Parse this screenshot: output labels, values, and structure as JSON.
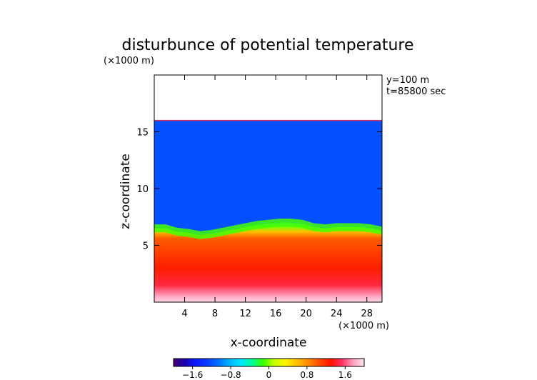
{
  "chart_data": {
    "type": "heatmap",
    "title": "disturbunce of potential temperature",
    "unit_note_top": "(×1000 m)",
    "unit_note_x": "(×1000 m)",
    "xlabel": "x-coordinate",
    "ylabel": "z-coordinate",
    "annotations": [
      "y=100 m",
      "t=85800 sec"
    ],
    "xlim": [
      0,
      30
    ],
    "ylim": [
      0,
      20
    ],
    "xticks": [
      4,
      8,
      12,
      16,
      20,
      24,
      28
    ],
    "yticks": [
      5,
      10,
      15
    ],
    "grid": false,
    "colorbar": {
      "ticks": [
        "−1.6",
        "−0.8",
        "0",
        "0.8",
        "1.6"
      ],
      "tick_values": [
        -1.6,
        -0.8,
        0,
        0.8,
        1.6
      ],
      "range": [
        -2.0,
        2.0
      ],
      "colormap": "rainbow",
      "stops": [
        "#4b006e",
        "#1a00b0",
        "#0a1cff",
        "#0a3cff",
        "#0070ff",
        "#00b4ff",
        "#00e6ff",
        "#00ff9a",
        "#38ff00",
        "#c8ff00",
        "#fff400",
        "#ffc000",
        "#ff8c00",
        "#ff4a00",
        "#ff1400",
        "#ff3060",
        "#ff9cc0",
        "#ffe6f0"
      ]
    },
    "field": {
      "x": [
        0,
        1.5,
        3,
        4.5,
        6,
        7.5,
        9,
        10.5,
        12,
        13.5,
        15,
        16.5,
        18,
        19.5,
        21,
        22.5,
        24,
        25.5,
        27,
        28.5,
        30
      ],
      "interface_height": [
        6.5,
        6.5,
        6.2,
        6.1,
        5.9,
        6.0,
        6.2,
        6.4,
        6.6,
        6.8,
        6.9,
        7.0,
        7.0,
        6.9,
        6.6,
        6.5,
        6.6,
        6.6,
        6.6,
        6.5,
        6.3
      ],
      "top_height": 16.0,
      "upper_value": -1.2,
      "lower_value": 1.3,
      "surface_value": 1.9
    }
  }
}
